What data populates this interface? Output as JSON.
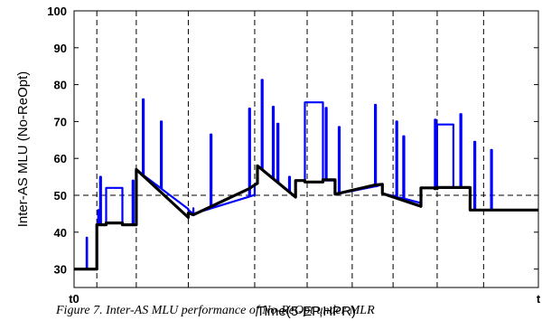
{
  "chart_data": {
    "type": "line",
    "xlabel": "Time(5-EP,HPR)",
    "ylabel": "Inter-AS MLU (No-ReOpt)",
    "ylim": [
      25,
      100
    ],
    "yticks": [
      30,
      40,
      50,
      60,
      70,
      80,
      90,
      100
    ],
    "xlim": [
      0,
      100
    ],
    "xtick_labels": [
      {
        "x": 0,
        "label": "t0"
      },
      {
        "x": 100,
        "label": "t"
      }
    ],
    "reference_line": {
      "y": 50,
      "style": "dashed"
    },
    "epoch_boundaries": [
      4.9,
      13.4,
      24.6,
      38.9,
      50.2,
      59.9,
      68.7,
      78.2,
      88.2
    ],
    "series": [
      {
        "color": "#0000ff",
        "points": [
          [
            0,
            30
          ],
          [
            2.7,
            30
          ],
          [
            2.7,
            38.5
          ],
          [
            2.8,
            38.5
          ],
          [
            2.8,
            30
          ],
          [
            4.9,
            30
          ],
          [
            4.9,
            42
          ],
          [
            5.2,
            42
          ],
          [
            5.2,
            46
          ],
          [
            5.4,
            46
          ],
          [
            5.4,
            42
          ],
          [
            5.6,
            42
          ],
          [
            5.6,
            55
          ],
          [
            5.8,
            55
          ],
          [
            5.8,
            42
          ],
          [
            6.9,
            42
          ],
          [
            6.9,
            52
          ],
          [
            10.4,
            52
          ],
          [
            10.4,
            42
          ],
          [
            12.6,
            42
          ],
          [
            12.6,
            54
          ],
          [
            12.8,
            54
          ],
          [
            12.8,
            42
          ],
          [
            13.4,
            42
          ],
          [
            13.4,
            57
          ],
          [
            14.8,
            55.6
          ],
          [
            14.8,
            76
          ],
          [
            15.0,
            76
          ],
          [
            15.0,
            55.4
          ],
          [
            18.7,
            51.9
          ],
          [
            18.7,
            70
          ],
          [
            18.9,
            70
          ],
          [
            18.9,
            51.7
          ],
          [
            24.6,
            46.3
          ],
          [
            24.6,
            46
          ],
          [
            25.7,
            45
          ],
          [
            25.7,
            46.5
          ],
          [
            25.7,
            45
          ],
          [
            29.4,
            46.4
          ],
          [
            29.4,
            66.5
          ],
          [
            29.6,
            66.5
          ],
          [
            29.6,
            46.5
          ],
          [
            37.7,
            49.6
          ],
          [
            37.7,
            73.5
          ],
          [
            37.9,
            73.5
          ],
          [
            37.9,
            49.7
          ],
          [
            38.9,
            50.1
          ],
          [
            38.9,
            52.8
          ],
          [
            39.5,
            53.5
          ],
          [
            39.5,
            58
          ],
          [
            40.4,
            57
          ],
          [
            40.4,
            81.3
          ],
          [
            40.6,
            81.3
          ],
          [
            40.6,
            56.8
          ],
          [
            42.8,
            54.5
          ],
          [
            42.8,
            74
          ],
          [
            43.0,
            74
          ],
          [
            43.0,
            54.3
          ],
          [
            43.8,
            53.5
          ],
          [
            43.8,
            69.4
          ],
          [
            44.0,
            69.4
          ],
          [
            44.0,
            53.3
          ],
          [
            46.3,
            51
          ],
          [
            46.3,
            55
          ],
          [
            46.5,
            55
          ],
          [
            46.5,
            50.7
          ],
          [
            47.7,
            49.5
          ],
          [
            47.7,
            54
          ],
          [
            49.7,
            54
          ],
          [
            49.7,
            75.2
          ],
          [
            53.6,
            75.2
          ],
          [
            53.6,
            54
          ],
          [
            54.2,
            54
          ],
          [
            54.2,
            73.7
          ],
          [
            54.4,
            73.7
          ],
          [
            54.4,
            54
          ],
          [
            56.2,
            54
          ],
          [
            56.2,
            50.3
          ],
          [
            57.0,
            50.4
          ],
          [
            57.0,
            68.5
          ],
          [
            57.2,
            68.5
          ],
          [
            57.2,
            50.5
          ],
          [
            64.8,
            52.4
          ],
          [
            64.8,
            74.5
          ],
          [
            65.0,
            74.5
          ],
          [
            65.0,
            52.4
          ],
          [
            66.4,
            53
          ],
          [
            66.4,
            50.5
          ],
          [
            69.4,
            49.6
          ],
          [
            69.4,
            70
          ],
          [
            69.6,
            70
          ],
          [
            69.6,
            49.5
          ],
          [
            70.9,
            49.2
          ],
          [
            70.9,
            66
          ],
          [
            71.1,
            66
          ],
          [
            71.1,
            49.1
          ],
          [
            74.7,
            47.9
          ],
          [
            74.7,
            52
          ],
          [
            77.7,
            52
          ],
          [
            77.7,
            70.5
          ],
          [
            77.9,
            70.5
          ],
          [
            77.9,
            52
          ],
          [
            78.2,
            52
          ],
          [
            78.2,
            69.2
          ],
          [
            81.7,
            69.2
          ],
          [
            81.7,
            52
          ],
          [
            83.2,
            52
          ],
          [
            83.2,
            72
          ],
          [
            83.4,
            72
          ],
          [
            83.4,
            52
          ],
          [
            85.3,
            52
          ],
          [
            85.3,
            46
          ],
          [
            86.2,
            46
          ],
          [
            86.2,
            64.5
          ],
          [
            86.4,
            64.5
          ],
          [
            86.4,
            46
          ],
          [
            89.8,
            46
          ],
          [
            89.8,
            62.3
          ],
          [
            90.0,
            62.3
          ],
          [
            90.0,
            46
          ],
          [
            100,
            46
          ]
        ]
      },
      {
        "color": "#000000",
        "points": [
          [
            0,
            30
          ],
          [
            4.9,
            30
          ],
          [
            4.9,
            42
          ],
          [
            6.9,
            42
          ],
          [
            6.9,
            42.5
          ],
          [
            10.4,
            42.5
          ],
          [
            10.4,
            42
          ],
          [
            13.4,
            42
          ],
          [
            13.4,
            57
          ],
          [
            24.6,
            44
          ],
          [
            24.6,
            45.2
          ],
          [
            25.7,
            44.7
          ],
          [
            37.7,
            51.8
          ],
          [
            38.9,
            52.8
          ],
          [
            39.5,
            53.2
          ],
          [
            39.5,
            58
          ],
          [
            47.7,
            49.5
          ],
          [
            47.7,
            54
          ],
          [
            49.7,
            54
          ],
          [
            49.7,
            53.6
          ],
          [
            53.6,
            53.6
          ],
          [
            53.6,
            54.2
          ],
          [
            56.2,
            54.2
          ],
          [
            56.2,
            50.3
          ],
          [
            64.8,
            52.8
          ],
          [
            66.4,
            53
          ],
          [
            66.4,
            50.5
          ],
          [
            74.7,
            47
          ],
          [
            74.7,
            52
          ],
          [
            77.7,
            52
          ],
          [
            77.7,
            51.8
          ],
          [
            78.2,
            51.8
          ],
          [
            78.2,
            52.1
          ],
          [
            85.3,
            52.1
          ],
          [
            85.3,
            46
          ],
          [
            100,
            46
          ]
        ]
      }
    ]
  },
  "caption": "Figure 7.   Inter-AS MLU performance of No-ReOpt under MLR"
}
